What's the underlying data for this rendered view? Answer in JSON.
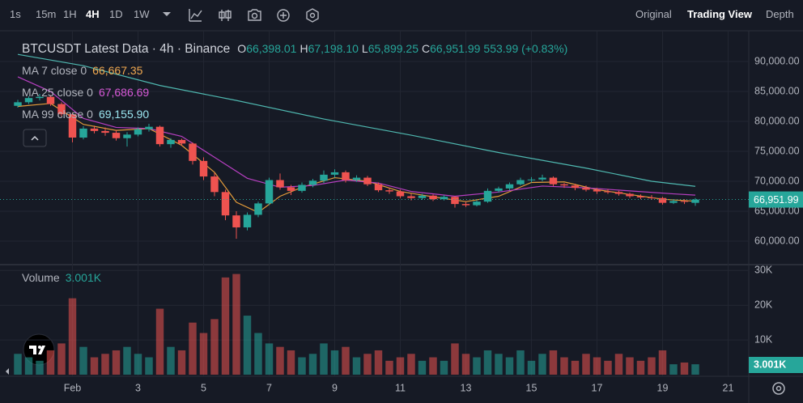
{
  "toolbar": {
    "intervals": [
      "1s",
      "15m",
      "1H",
      "4H",
      "1D",
      "1W"
    ],
    "active_interval": "4H",
    "views": [
      "Original",
      "Trading View",
      "Depth"
    ],
    "active_view": "Trading View"
  },
  "chart_data": {
    "type": "candlestick",
    "title": "BTCUSDT Latest Data · 4h · Binance",
    "ohlc": [
      {
        "label": "O",
        "value": "66,398.01"
      },
      {
        "label": "H",
        "value": "67,198.10"
      },
      {
        "label": "L",
        "value": "65,899.25"
      },
      {
        "label": "C",
        "value": "66,951.99"
      }
    ],
    "change": "553.99 (+0.83%)",
    "up_color": "#26a69a",
    "down_color": "#ef5350",
    "xlim": [
      -1.63,
      66.89
    ],
    "xticks": [
      {
        "value": 5,
        "label": "Feb"
      },
      {
        "value": 11,
        "label": "3"
      },
      {
        "value": 17,
        "label": "5"
      },
      {
        "value": 23,
        "label": "7"
      },
      {
        "value": 29,
        "label": "9"
      },
      {
        "value": 35,
        "label": "11"
      },
      {
        "value": 41,
        "label": "13"
      },
      {
        "value": 47,
        "label": "15"
      },
      {
        "value": 53,
        "label": "17"
      },
      {
        "value": 59,
        "label": "19"
      },
      {
        "value": 65,
        "label": "21"
      }
    ],
    "ylim": [
      56350,
      94600
    ],
    "yticks": [
      {
        "value": 90000,
        "label": "90,000.00"
      },
      {
        "value": 85000,
        "label": "85,000.00"
      },
      {
        "value": 80000,
        "label": "80,000.00"
      },
      {
        "value": 75000,
        "label": "75,000.00"
      },
      {
        "value": 70000,
        "label": "70,000.00"
      },
      {
        "value": 65000,
        "label": "65,000.00"
      },
      {
        "value": 60000,
        "label": "60,000.00"
      }
    ],
    "grid": true,
    "candles": [
      [
        82600,
        83600,
        82300,
        83200
      ],
      [
        83200,
        84200,
        82900,
        83900
      ],
      [
        83900,
        84600,
        83500,
        84100
      ],
      [
        84100,
        84400,
        82600,
        82900
      ],
      [
        82900,
        83200,
        80800,
        81200
      ],
      [
        81200,
        81500,
        76500,
        77300
      ],
      [
        77300,
        79200,
        77000,
        78800
      ],
      [
        78800,
        79300,
        78000,
        78400
      ],
      [
        78400,
        79000,
        77600,
        78100
      ],
      [
        78100,
        78600,
        76800,
        77200
      ],
      [
        77200,
        78200,
        75800,
        77800
      ],
      [
        77800,
        79000,
        77500,
        78700
      ],
      [
        78700,
        79600,
        78300,
        79100
      ],
      [
        79100,
        79300,
        75800,
        76200
      ],
      [
        76200,
        77200,
        75600,
        76900
      ],
      [
        76900,
        77100,
        75900,
        76300
      ],
      [
        76300,
        76500,
        72800,
        73400
      ],
      [
        73400,
        74000,
        70200,
        70800
      ],
      [
        70800,
        71400,
        67500,
        68200
      ],
      [
        68200,
        68600,
        63500,
        64300
      ],
      [
        64300,
        65000,
        60400,
        62300
      ],
      [
        62300,
        64800,
        61800,
        64400
      ],
      [
        64400,
        66600,
        64000,
        66300
      ],
      [
        66300,
        70600,
        66000,
        70200
      ],
      [
        70200,
        71300,
        68600,
        69000
      ],
      [
        69000,
        69400,
        67700,
        68400
      ],
      [
        68400,
        69800,
        68100,
        69400
      ],
      [
        69400,
        70400,
        69000,
        70100
      ],
      [
        70100,
        71800,
        69700,
        71100
      ],
      [
        71100,
        72000,
        70600,
        71500
      ],
      [
        71500,
        71800,
        69800,
        70200
      ],
      [
        70200,
        71000,
        69900,
        70600
      ],
      [
        70600,
        70900,
        69200,
        69500
      ],
      [
        69500,
        69800,
        68200,
        68500
      ],
      [
        68500,
        68900,
        67900,
        68300
      ],
      [
        68300,
        68600,
        67200,
        67500
      ],
      [
        67500,
        67900,
        66800,
        67200
      ],
      [
        67200,
        67900,
        66900,
        67600
      ],
      [
        67600,
        67800,
        66700,
        67000
      ],
      [
        67000,
        67700,
        66800,
        67400
      ],
      [
        67400,
        67500,
        65600,
        66200
      ],
      [
        66200,
        66600,
        65700,
        66000
      ],
      [
        66000,
        66800,
        65800,
        66600
      ],
      [
        66600,
        68800,
        66400,
        68400
      ],
      [
        68400,
        69100,
        68100,
        68800
      ],
      [
        68800,
        69800,
        68500,
        69500
      ],
      [
        69500,
        70600,
        69300,
        70200
      ],
      [
        70200,
        70700,
        69800,
        70300
      ],
      [
        70300,
        71100,
        70000,
        70600
      ],
      [
        70600,
        70800,
        69200,
        69500
      ],
      [
        69500,
        69700,
        68900,
        69300
      ],
      [
        69300,
        69600,
        68500,
        68900
      ],
      [
        68900,
        69300,
        68300,
        68600
      ],
      [
        68600,
        68900,
        67900,
        68300
      ],
      [
        68300,
        68700,
        67900,
        68200
      ],
      [
        68200,
        68400,
        67600,
        67900
      ],
      [
        67900,
        68100,
        67200,
        67500
      ],
      [
        67500,
        67800,
        67000,
        67300
      ],
      [
        67300,
        67700,
        66900,
        67200
      ],
      [
        67200,
        67400,
        66100,
        66400
      ],
      [
        66400,
        67000,
        66200,
        66700
      ],
      [
        66700,
        67000,
        66200,
        66600
      ],
      [
        66398.01,
        67198.1,
        65899.25,
        66951.99
      ]
    ],
    "last_price": {
      "value": 66951.99,
      "label": "66,951.99"
    },
    "ma": [
      {
        "name": "MA 7 close 0",
        "color": "#e39b3a",
        "text_color": "#f0a850",
        "value_label": "66,667.35",
        "x": [
          0,
          3,
          6,
          9,
          12,
          15,
          18,
          20,
          22,
          24,
          26,
          29,
          32,
          35,
          38,
          41,
          44,
          47,
          50,
          53,
          56,
          59,
          62
        ],
        "values": [
          82500,
          83000,
          79500,
          78500,
          78800,
          76000,
          71500,
          66500,
          64800,
          67500,
          69000,
          70600,
          70000,
          68300,
          67400,
          66600,
          67500,
          69800,
          69900,
          68600,
          67800,
          67000,
          66667.35
        ]
      },
      {
        "name": "MA 25 close 0",
        "color": "#b63fc0",
        "text_color": "#d85ad8",
        "value_label": "67,686.69",
        "x": [
          0,
          3,
          6,
          9,
          12,
          15,
          18,
          21,
          24,
          27,
          30,
          33,
          36,
          40,
          44,
          48,
          52,
          56,
          60,
          62
        ],
        "values": [
          87450,
          85000,
          80500,
          79000,
          78800,
          77500,
          74000,
          70500,
          69000,
          69300,
          70200,
          69700,
          68300,
          67500,
          68200,
          69200,
          68900,
          68400,
          67900,
          67686.69
        ]
      },
      {
        "name": "MA 99 close 0",
        "color": "#4fb8b0",
        "text_color": "#9be6f0",
        "value_label": "69,155.90",
        "x": [
          0,
          6,
          13,
          20,
          28,
          36,
          44,
          52,
          58,
          62
        ],
        "values": [
          91200,
          89300,
          86000,
          83500,
          80400,
          77700,
          74800,
          72200,
          70000,
          69155.9
        ]
      }
    ],
    "volume": {
      "name": "Volume",
      "values": [
        6000,
        5000,
        4000,
        7000,
        9000,
        22000,
        8000,
        5000,
        6000,
        7000,
        8000,
        6000,
        5000,
        19000,
        8000,
        7000,
        15000,
        12000,
        16000,
        28000,
        29000,
        17000,
        12000,
        9000,
        8000,
        7000,
        5000,
        6000,
        9000,
        7000,
        8000,
        5000,
        6000,
        7000,
        4000,
        5000,
        6000,
        4000,
        5000,
        4000,
        9000,
        6000,
        5000,
        7000,
        6000,
        5000,
        7000,
        4000,
        6000,
        7000,
        5000,
        4000,
        6000,
        5000,
        4000,
        6000,
        5000,
        4000,
        5000,
        7000,
        3000,
        3500,
        3001
      ],
      "last": {
        "value": 3001,
        "label": "3.001K"
      },
      "ylim": [
        0,
        31000
      ],
      "yticks": [
        {
          "value": 30000,
          "label": "30K"
        },
        {
          "value": 20000,
          "label": "20K"
        },
        {
          "value": 10000,
          "label": "10K"
        }
      ]
    }
  }
}
